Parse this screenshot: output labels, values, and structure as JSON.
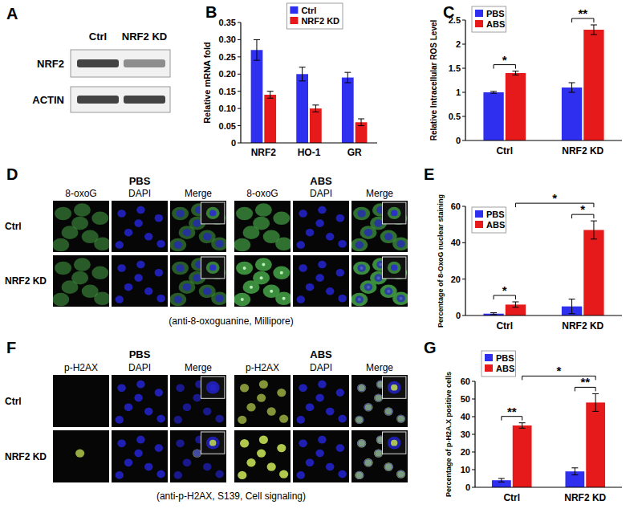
{
  "panels": {
    "A": {
      "label": "A",
      "lanes": [
        "Ctrl",
        "NRF2 KD"
      ],
      "bands": [
        "NRF2",
        "ACTIN"
      ]
    },
    "D": {
      "label": "D",
      "conditions": [
        "PBS",
        "ABS"
      ],
      "channels": [
        "8-oxoG",
        "DAPI",
        "Merge"
      ],
      "rows": [
        "Ctrl",
        "NRF2 KD"
      ],
      "caption": "(anti-8-oxoguanine, Millipore)"
    },
    "F": {
      "label": "F",
      "conditions": [
        "PBS",
        "ABS"
      ],
      "channels": [
        "p-H2AX",
        "DAPI",
        "Merge"
      ],
      "rows": [
        "Ctrl",
        "NRF2 KD"
      ],
      "caption": "(anti-p-H2AX, S139, Cell signaling)"
    }
  },
  "chart_data": [
    {
      "type": "bar",
      "panel_label": "B",
      "y_label": "Relative mRNA fold",
      "categories": [
        "NRF2",
        "HO-1",
        "GR"
      ],
      "series": [
        {
          "name": "Ctrl",
          "color": "#2f2ff0",
          "values": [
            0.27,
            0.2,
            0.19
          ],
          "errors": [
            0.03,
            0.02,
            0.015
          ]
        },
        {
          "name": "NRF2 KD",
          "color": "#e61a1a",
          "values": [
            0.14,
            0.1,
            0.06
          ],
          "errors": [
            0.01,
            0.01,
            0.01
          ]
        }
      ],
      "ylim": [
        0,
        0.35
      ],
      "yticks": [
        0,
        0.05,
        {
          "value": 0.1,
          "label": "0.10"
        },
        0.15,
        {
          "value": 0.2,
          "label": "0.20"
        },
        0.25,
        {
          "value": 0.3,
          "label": "0.30"
        },
        0.35
      ],
      "grid": false,
      "legend": "top-right",
      "annotations": []
    },
    {
      "type": "bar",
      "panel_label": "C",
      "y_label": "Relative Intracellular ROS Level",
      "categories": [
        "Ctrl",
        "NRF2 KD"
      ],
      "series": [
        {
          "name": "PBS",
          "color": "#2f2ff0",
          "values": [
            1.0,
            1.1
          ],
          "errors": [
            0.02,
            0.1
          ]
        },
        {
          "name": "ABS",
          "color": "#e61a1a",
          "values": [
            1.4,
            2.3
          ],
          "errors": [
            0.04,
            0.1
          ]
        }
      ],
      "ylim": [
        0,
        2.5
      ],
      "yticks": [
        0,
        0.5,
        1,
        1.5,
        2,
        2.5
      ],
      "grid": false,
      "legend": "top-left",
      "annotations": [
        {
          "text": "*",
          "from": [
            0,
            0
          ],
          "to": [
            0,
            1
          ]
        },
        {
          "text": "**",
          "from": [
            1,
            0
          ],
          "to": [
            1,
            1
          ]
        }
      ]
    },
    {
      "type": "bar",
      "panel_label": "E",
      "y_label": "Percentage of 8-OxoG nuclear staining",
      "categories": [
        "Ctrl",
        "NRF2 KD"
      ],
      "series": [
        {
          "name": "PBS",
          "color": "#2f2ff0",
          "values": [
            1,
            5
          ],
          "errors": [
            0.5,
            4
          ]
        },
        {
          "name": "ABS",
          "color": "#e61a1a",
          "values": [
            6,
            47
          ],
          "errors": [
            1.5,
            5
          ]
        }
      ],
      "ylim": [
        0,
        60
      ],
      "yticks": [
        0,
        20,
        40,
        60
      ],
      "grid": false,
      "legend": "top-left",
      "annotations": [
        {
          "text": "*",
          "from": [
            0,
            0
          ],
          "to": [
            0,
            1
          ]
        },
        {
          "text": "*",
          "from": [
            1,
            0
          ],
          "to": [
            1,
            1
          ]
        },
        {
          "text": "*",
          "from": [
            0,
            1
          ],
          "to": [
            1,
            1
          ]
        }
      ]
    },
    {
      "type": "bar",
      "panel_label": "G",
      "y_label": "Percentage of p-H2A.X positive cells",
      "categories": [
        "Ctrl",
        "NRF2 KD"
      ],
      "series": [
        {
          "name": "PBS",
          "color": "#2f2ff0",
          "values": [
            4,
            9
          ],
          "errors": [
            1,
            2
          ]
        },
        {
          "name": "ABS",
          "color": "#e61a1a",
          "values": [
            35,
            48
          ],
          "errors": [
            1.5,
            5
          ]
        }
      ],
      "ylim": [
        0,
        60
      ],
      "yticks": [
        0,
        10,
        20,
        30,
        40,
        50,
        60
      ],
      "grid": false,
      "legend": "top-left",
      "annotations": [
        {
          "text": "**",
          "from": [
            0,
            0
          ],
          "to": [
            0,
            1
          ]
        },
        {
          "text": "**",
          "from": [
            1,
            0
          ],
          "to": [
            1,
            1
          ]
        },
        {
          "text": "*",
          "from": [
            0,
            1
          ],
          "to": [
            1,
            1
          ]
        }
      ]
    }
  ]
}
